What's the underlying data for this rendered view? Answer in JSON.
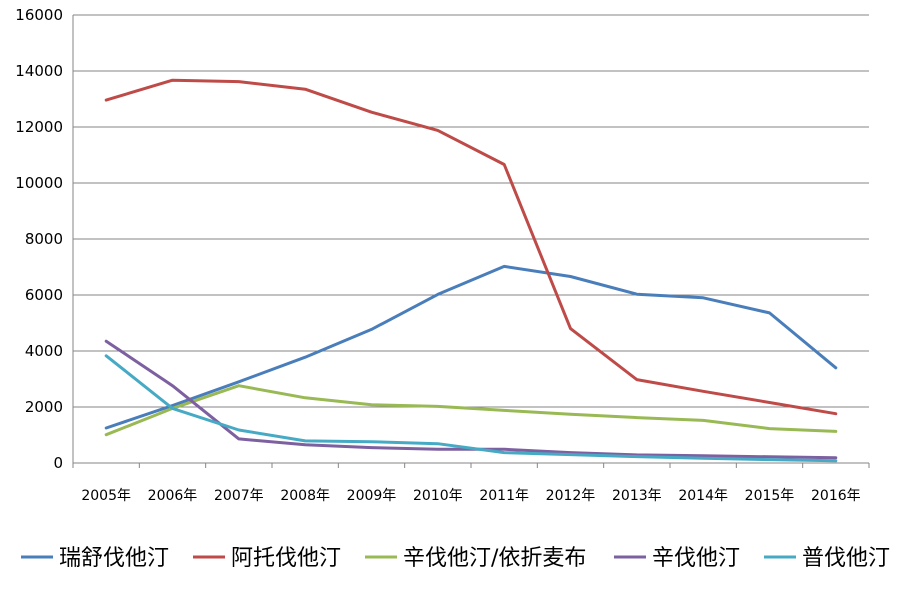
{
  "chart_data": {
    "type": "line",
    "categories": [
      "2005年",
      "2006年",
      "2007年",
      "2008年",
      "2009年",
      "2010年",
      "2011年",
      "2012年",
      "2013年",
      "2014年",
      "2015年",
      "2016年"
    ],
    "ylim": [
      0,
      16000
    ],
    "yticks": [
      0,
      2000,
      4000,
      6000,
      8000,
      10000,
      12000,
      14000,
      16000
    ],
    "grid": true,
    "legend_position": "bottom",
    "series": [
      {
        "name": "瑞舒伐他汀",
        "color": "#4a7ebb",
        "values": [
          1250,
          2050,
          2900,
          3780,
          4770,
          6020,
          7020,
          6660,
          6030,
          5900,
          5360,
          3400
        ]
      },
      {
        "name": "阿托伐他汀",
        "color": "#be4b48",
        "values": [
          12960,
          13670,
          13620,
          13350,
          12530,
          11880,
          10660,
          4800,
          2980,
          2560,
          2160,
          1760
        ]
      },
      {
        "name": "辛伐他汀/依折麦布",
        "color": "#98b954",
        "values": [
          1010,
          1950,
          2760,
          2330,
          2080,
          2020,
          1880,
          1740,
          1620,
          1520,
          1230,
          1130
        ]
      },
      {
        "name": "辛伐他汀",
        "color": "#7d60a0",
        "values": [
          4350,
          2760,
          860,
          650,
          550,
          490,
          490,
          370,
          290,
          260,
          220,
          190
        ]
      },
      {
        "name": "普伐他汀",
        "color": "#46aac5",
        "values": [
          3830,
          1950,
          1180,
          790,
          760,
          690,
          370,
          300,
          230,
          170,
          120,
          80
        ]
      }
    ]
  }
}
